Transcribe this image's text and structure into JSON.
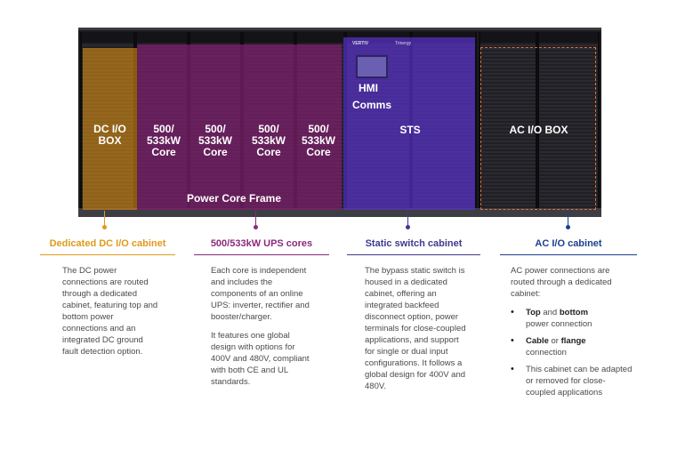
{
  "cabinets": {
    "dc_io_box": "DC I/O\nBOX",
    "cores": [
      {
        "label": "500/\n533kW\nCore"
      },
      {
        "label": "500/\n533kW\nCore"
      },
      {
        "label": "500/\n533kW\nCore"
      },
      {
        "label": "500/\n533kW\nCore"
      }
    ],
    "power_core_frame": "Power Core Frame",
    "hmi": "HMI",
    "comms": "Comms",
    "sts": "STS",
    "ac_io_box": "AC I/O BOX",
    "brand": "VERTIV",
    "model": "Trinergy"
  },
  "colors": {
    "dc": "#e09a1a",
    "core": "#8c2a7c",
    "sts": "#3d3a8e",
    "ac": "#1e3f8e"
  },
  "columns": {
    "dc": {
      "title": "Dedicated DC I/O cabinet",
      "body": "The DC power connections are routed through a dedicated cabinet, featuring top and bottom power connections and an integrated DC ground fault detection option."
    },
    "core": {
      "title": "500/533kW UPS cores",
      "para1": "Each core is independent and includes the components of an online UPS: inverter, rectifier and booster/charger.",
      "para2": "It features one global design with options for 400V and 480V, compliant with both CE and UL standards."
    },
    "sts": {
      "title": "Static switch cabinet",
      "body": "The bypass static switch is housed in a dedicated cabinet, offering an integrated backfeed disconnect option, power terminals for close-coupled applications, and support for single or dual input configurations. It follows a global design for 400V and 480V."
    },
    "ac": {
      "title": "AC I/O cabinet",
      "intro": "AC power connections are routed through a dedicated cabinet:",
      "bullets": [
        {
          "bold1": "Top",
          "mid": " and ",
          "bold2": "bottom",
          "rest": " power connection"
        },
        {
          "bold1": "Cable",
          "mid": " or ",
          "bold2": "flange",
          "rest": " connection"
        },
        {
          "bold1": "",
          "mid": "",
          "bold2": "",
          "rest": "This cabinet can be adapted or removed for close-coupled applications"
        }
      ]
    }
  }
}
